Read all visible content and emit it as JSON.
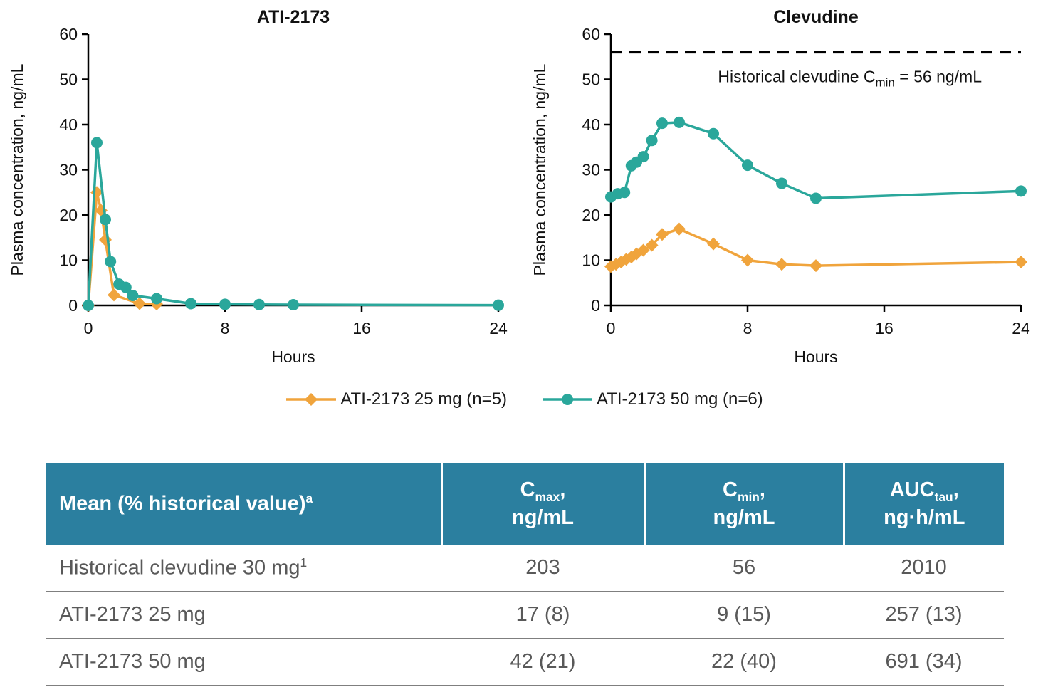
{
  "chart_data": [
    {
      "type": "line",
      "title": "ATI-2173",
      "xlabel": "Hours",
      "ylabel": "Plasma concentration, ng/mL",
      "xlim": [
        0,
        24
      ],
      "xticks": [
        0,
        8,
        16,
        24
      ],
      "ylim": [
        0,
        60
      ],
      "yticks": [
        0,
        10,
        20,
        30,
        40,
        50,
        60
      ],
      "grid": false,
      "series": [
        {
          "name": "ATI-2173 25 mg (n=5)",
          "color": "#f0a43c",
          "marker": "diamond",
          "x": [
            0,
            0.5,
            0.75,
            1,
            1.5,
            3,
            4
          ],
          "y": [
            0,
            25,
            21,
            14.5,
            2.3,
            0.4,
            0.3
          ]
        },
        {
          "name": "ATI-2173 50 mg (n=6)",
          "color": "#2aa79b",
          "marker": "circle",
          "x": [
            0,
            0.5,
            1,
            1.3,
            1.8,
            2.2,
            2.6,
            4,
            6,
            8,
            10,
            12,
            24
          ],
          "y": [
            0,
            36,
            19,
            9.7,
            4.7,
            4,
            2.2,
            1.5,
            0.4,
            0.25,
            0.2,
            0.15,
            0.05
          ]
        }
      ]
    },
    {
      "type": "line",
      "title": "Clevudine",
      "xlabel": "Hours",
      "ylabel": "Plasma concentration, ng/mL",
      "xlim": [
        0,
        24
      ],
      "xticks": [
        0,
        8,
        16,
        24
      ],
      "ylim": [
        0,
        60
      ],
      "yticks": [
        0,
        10,
        20,
        30,
        40,
        50,
        60
      ],
      "grid": false,
      "refline": {
        "y": 56,
        "color": "#000000",
        "dashed": true,
        "label": [
          {
            "t": "Historical clevudine C"
          },
          {
            "t": "min",
            "s": "sub"
          },
          {
            "t": " = 56 ng/mL"
          }
        ]
      },
      "series": [
        {
          "name": "ATI-2173 25 mg (n=5)",
          "color": "#f0a43c",
          "marker": "diamond",
          "x": [
            0,
            0.3,
            0.6,
            0.9,
            1.2,
            1.5,
            1.9,
            2.4,
            3,
            4,
            6,
            8,
            10,
            12,
            24
          ],
          "y": [
            8.6,
            9.1,
            9.6,
            10.2,
            10.7,
            11.4,
            12.2,
            13.3,
            15.7,
            16.9,
            13.6,
            10,
            9.1,
            8.8,
            9.6
          ]
        },
        {
          "name": "ATI-2173 50 mg (n=6)",
          "color": "#2aa79b",
          "marker": "circle",
          "x": [
            0,
            0.4,
            0.8,
            1.2,
            1.5,
            1.9,
            2.4,
            3,
            4,
            6,
            8,
            10,
            12,
            24
          ],
          "y": [
            24,
            24.7,
            25,
            30.9,
            31.7,
            32.9,
            36.5,
            40.3,
            40.5,
            38,
            31,
            27,
            23.7,
            25.3
          ]
        }
      ]
    }
  ],
  "legend": {
    "items": [
      {
        "label": "ATI-2173 25 mg (n=5)",
        "color": "#f0a43c",
        "marker": "diamond"
      },
      {
        "label": "ATI-2173 50 mg (n=6)",
        "color": "#2aa79b",
        "marker": "circle"
      }
    ]
  },
  "table": {
    "colors": {
      "header_bg": "#2b7f9f",
      "header_text": "#ffffff",
      "body_text": "#595959",
      "divider": "#7f7f7f"
    },
    "header": [
      [
        {
          "t": "Mean (% historical value)"
        },
        {
          "t": "a",
          "s": "sup"
        }
      ],
      [
        {
          "t": "C"
        },
        {
          "t": "max",
          "s": "sub"
        },
        {
          "t": ","
        },
        {
          "s": "br"
        },
        {
          "t": "ng/mL"
        }
      ],
      [
        {
          "t": "C"
        },
        {
          "t": "min",
          "s": "sub"
        },
        {
          "t": ","
        },
        {
          "s": "br"
        },
        {
          "t": "ng/mL"
        }
      ],
      [
        {
          "t": "AUC"
        },
        {
          "t": "tau",
          "s": "sub"
        },
        {
          "t": ","
        },
        {
          "s": "br"
        },
        {
          "t": "ng·h/mL"
        }
      ]
    ],
    "rows": [
      {
        "label": [
          {
            "t": "Historical clevudine 30 mg"
          },
          {
            "t": "1",
            "s": "sup"
          }
        ],
        "values": [
          "203",
          "56",
          "2010"
        ]
      },
      {
        "label": [
          {
            "t": "ATI-2173 25 mg"
          }
        ],
        "values": [
          "17 (8)",
          "9 (15)",
          "257 (13)"
        ]
      },
      {
        "label": [
          {
            "t": "ATI-2173 50 mg"
          }
        ],
        "values": [
          "42 (21)",
          "22 (40)",
          "691 (34)"
        ]
      }
    ]
  }
}
